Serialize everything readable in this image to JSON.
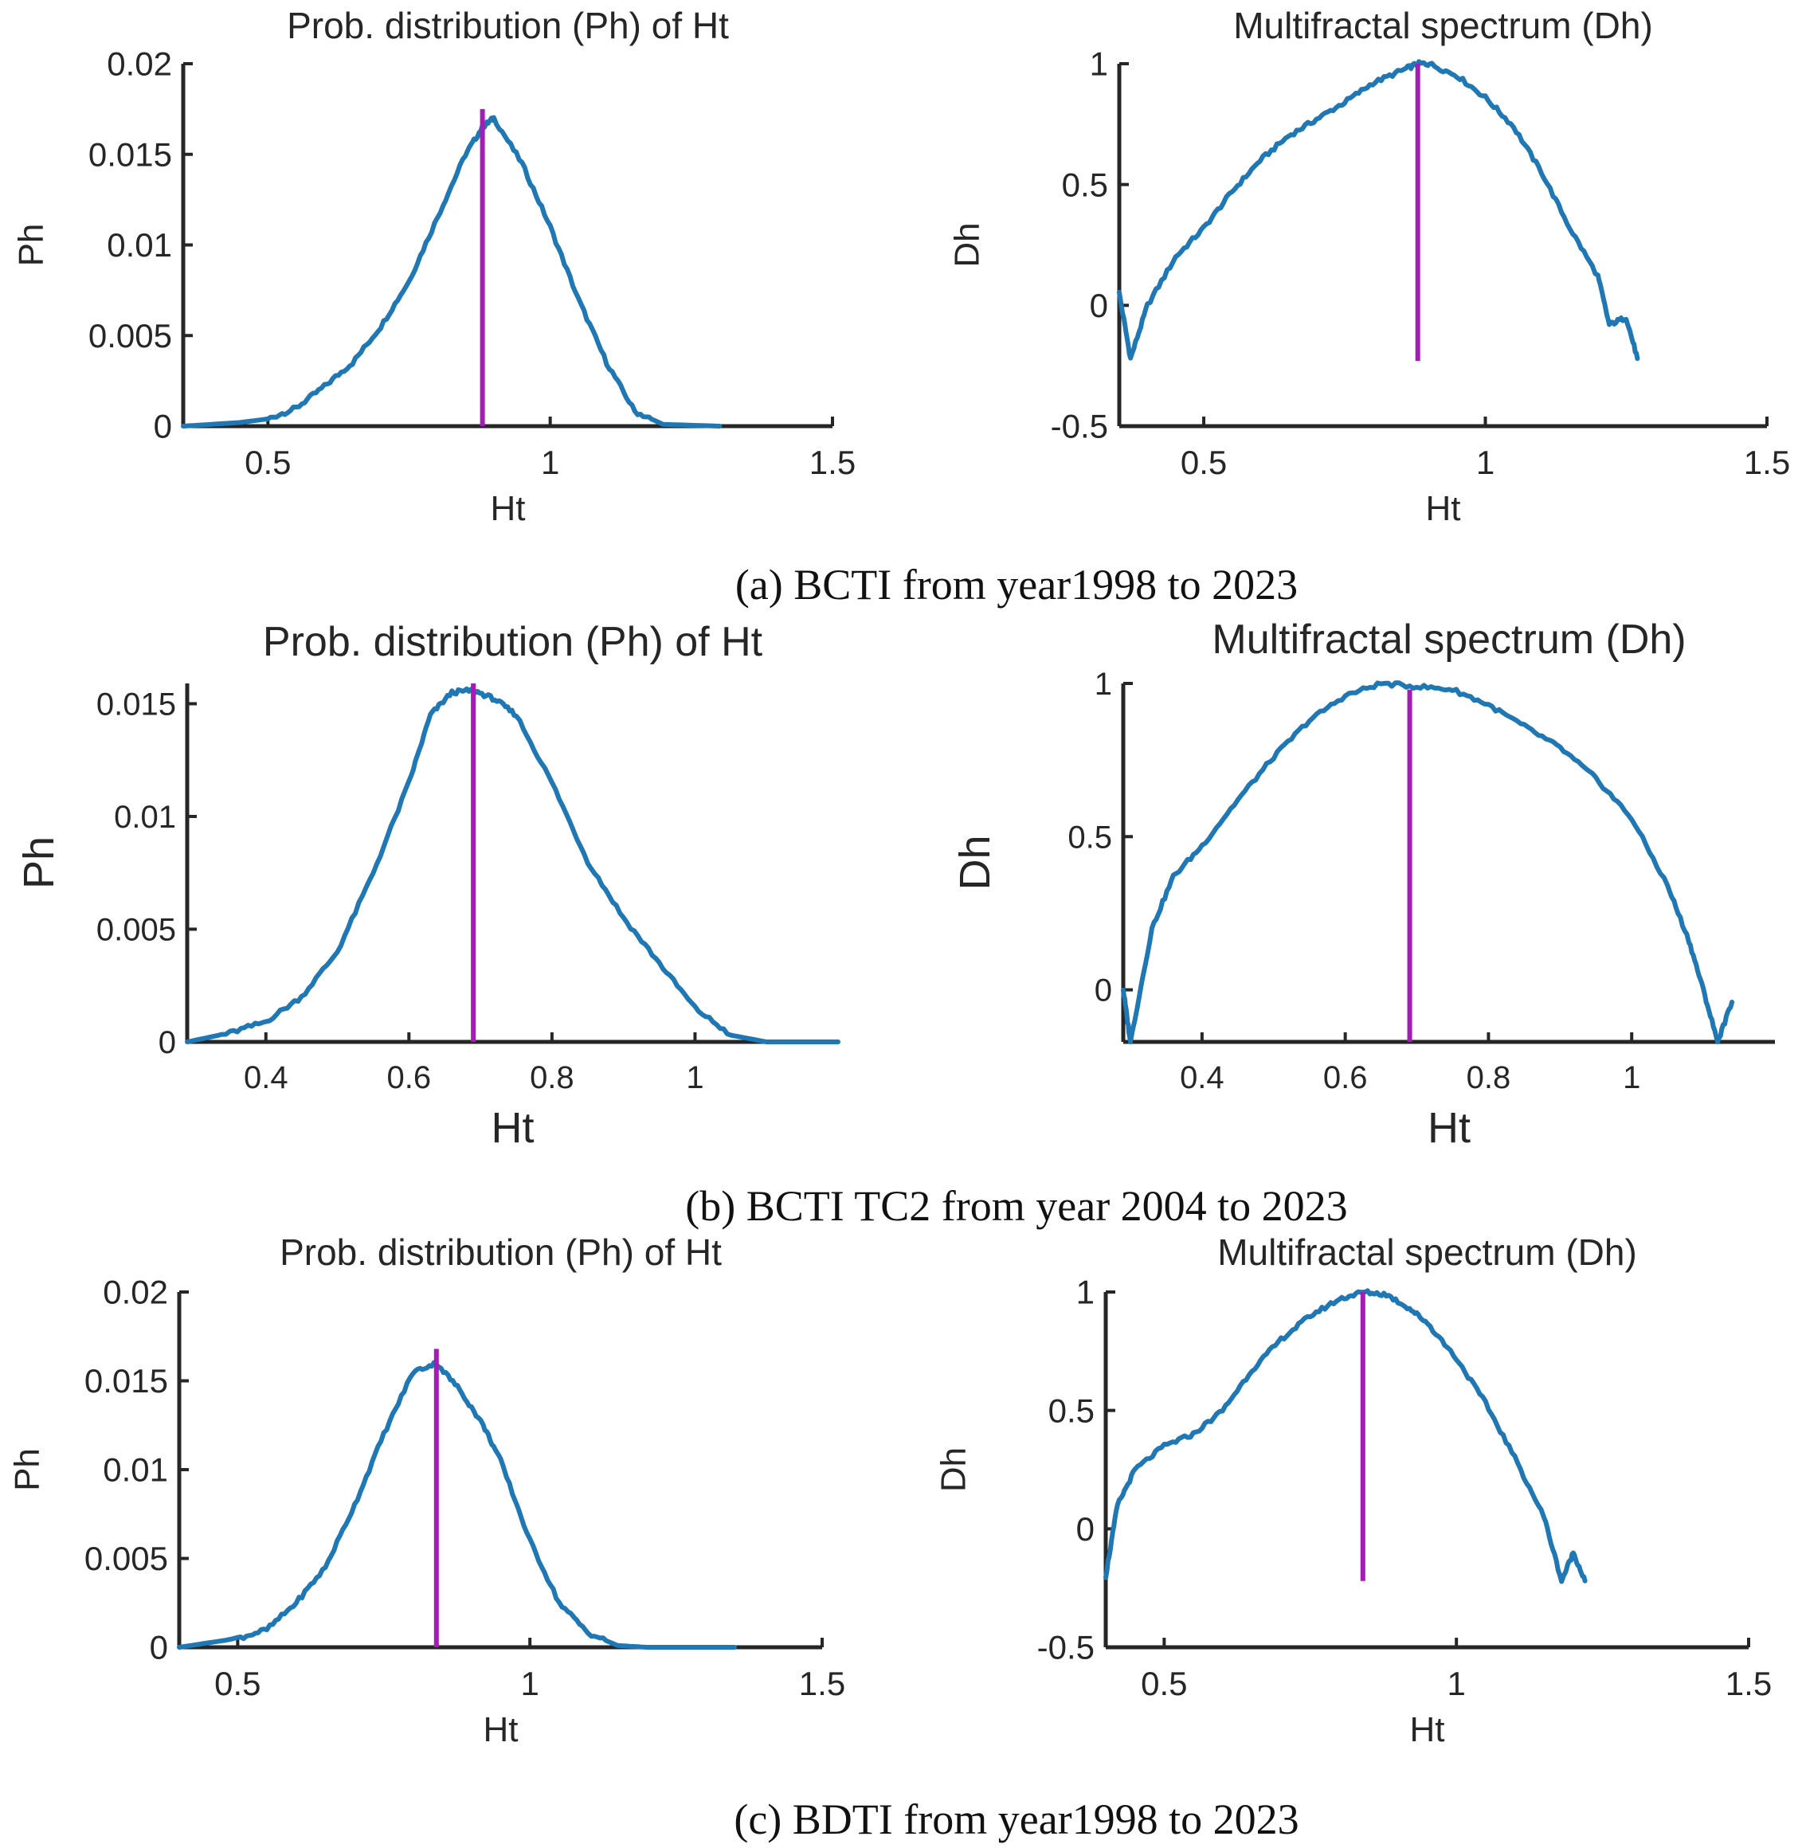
{
  "colors": {
    "series": "#1f77b4",
    "marker": "#a51bb5",
    "axis": "#262626"
  },
  "captions": [
    "(a)  BCTI from year1998 to 2023",
    "(b)  BCTI TC2 from year 2004 to 2023",
    "(c)  BDTI from year1998 to 2023"
  ],
  "chart_data": [
    {
      "id": "a-left",
      "type": "line",
      "title": "Prob. distribution (Ph) of Ht",
      "xlabel": "Ht",
      "ylabel": "Ph",
      "xlim": [
        0.35,
        1.5
      ],
      "ylim": [
        0,
        0.02
      ],
      "xticks": [
        0.5,
        1,
        1.5
      ],
      "xtick_labels": [
        "0.5",
        "1",
        "1.5"
      ],
      "yticks": [
        0,
        0.005,
        0.01,
        0.015,
        0.02
      ],
      "ytick_labels": [
        "0",
        "0.005",
        "0.01",
        "0.015",
        "0.02"
      ],
      "series": [
        {
          "name": "Ph",
          "x": [
            0.35,
            0.45,
            0.5,
            0.55,
            0.6,
            0.65,
            0.7,
            0.75,
            0.8,
            0.85,
            0.88,
            0.9,
            0.95,
            1.0,
            1.05,
            1.1,
            1.15,
            1.2,
            1.3
          ],
          "y": [
            0,
            0.0002,
            0.0004,
            0.001,
            0.0022,
            0.0035,
            0.0055,
            0.008,
            0.0115,
            0.015,
            0.0165,
            0.017,
            0.0145,
            0.011,
            0.007,
            0.0035,
            0.0008,
            0.0001,
            0
          ]
        }
      ],
      "marker": {
        "x": 0.88,
        "y": [
          0,
          0.0175
        ]
      }
    },
    {
      "id": "a-right",
      "type": "line",
      "title": "Multifractal spectrum (Dh)",
      "xlabel": "Ht",
      "ylabel": "Dh",
      "xlim": [
        0.35,
        1.5
      ],
      "ylim": [
        -0.5,
        1
      ],
      "xticks": [
        0.5,
        1,
        1.5
      ],
      "xtick_labels": [
        "0.5",
        "1",
        "1.5"
      ],
      "yticks": [
        -0.5,
        0,
        0.5,
        1
      ],
      "ytick_labels": [
        "-0.5",
        "0",
        "0.5",
        "1"
      ],
      "series": [
        {
          "name": "Dh",
          "x": [
            0.35,
            0.37,
            0.4,
            0.45,
            0.5,
            0.55,
            0.6,
            0.65,
            0.7,
            0.75,
            0.8,
            0.85,
            0.88,
            0.9,
            0.95,
            1.0,
            1.05,
            1.1,
            1.15,
            1.2,
            1.22,
            1.25,
            1.27
          ],
          "y": [
            0.05,
            -0.22,
            0.0,
            0.2,
            0.32,
            0.47,
            0.6,
            0.7,
            0.77,
            0.84,
            0.92,
            0.97,
            1.0,
            1.0,
            0.95,
            0.86,
            0.74,
            0.55,
            0.32,
            0.12,
            -0.08,
            -0.05,
            -0.22
          ]
        }
      ],
      "marker": {
        "x": 0.88,
        "y": [
          -0.23,
          1
        ]
      }
    },
    {
      "id": "b-left",
      "type": "line",
      "title": "Prob. distribution (Ph) of Ht",
      "xlabel": "Ht",
      "ylabel": "Ph",
      "xlim": [
        0.29,
        1.2
      ],
      "ylim": [
        0,
        0.0159
      ],
      "xticks": [
        0.4,
        0.6,
        0.8,
        1
      ],
      "xtick_labels": [
        "0.4",
        "0.6",
        "0.8",
        "1"
      ],
      "yticks": [
        0,
        0.005,
        0.01,
        0.015
      ],
      "ytick_labels": [
        "0",
        "0.005",
        "0.01",
        "0.015"
      ],
      "series": [
        {
          "name": "Ph",
          "x": [
            0.29,
            0.35,
            0.4,
            0.45,
            0.5,
            0.55,
            0.6,
            0.63,
            0.66,
            0.69,
            0.72,
            0.75,
            0.8,
            0.85,
            0.9,
            0.95,
            1.0,
            1.05,
            1.1,
            1.2
          ],
          "y": [
            0,
            0.0004,
            0.0009,
            0.002,
            0.004,
            0.0075,
            0.0115,
            0.0145,
            0.0155,
            0.0156,
            0.0152,
            0.0145,
            0.0115,
            0.008,
            0.0055,
            0.0035,
            0.0015,
            0.0003,
            0,
            0
          ]
        }
      ],
      "marker": {
        "x": 0.69,
        "y": [
          0,
          0.0159
        ]
      }
    },
    {
      "id": "b-right",
      "type": "line",
      "title": "Multifractal spectrum (Dh)",
      "xlabel": "Ht",
      "ylabel": "Dh",
      "xlim": [
        0.29,
        1.2
      ],
      "ylim": [
        -0.17,
        1
      ],
      "xticks": [
        0.4,
        0.6,
        0.8,
        1
      ],
      "xtick_labels": [
        "0.4",
        "0.6",
        "0.8",
        "1"
      ],
      "yticks": [
        0,
        0.5,
        1
      ],
      "ytick_labels": [
        "0",
        "0.5",
        "1"
      ],
      "series": [
        {
          "name": "Dh",
          "x": [
            0.29,
            0.3,
            0.33,
            0.36,
            0.4,
            0.45,
            0.5,
            0.55,
            0.6,
            0.65,
            0.7,
            0.75,
            0.8,
            0.85,
            0.9,
            0.95,
            1.0,
            1.05,
            1.08,
            1.1,
            1.12,
            1.14
          ],
          "y": [
            0.0,
            -0.17,
            0.2,
            0.37,
            0.47,
            0.62,
            0.76,
            0.88,
            0.96,
            1.0,
            0.99,
            0.98,
            0.93,
            0.86,
            0.79,
            0.69,
            0.56,
            0.34,
            0.16,
            0.0,
            -0.17,
            -0.04
          ]
        }
      ],
      "marker": {
        "x": 0.69,
        "y": [
          -0.17,
          0.98
        ]
      }
    },
    {
      "id": "c-left",
      "type": "line",
      "title": "Prob. distribution (Ph) of Ht",
      "xlabel": "Ht",
      "ylabel": "Ph",
      "xlim": [
        0.4,
        1.5
      ],
      "ylim": [
        0,
        0.02
      ],
      "xticks": [
        0.5,
        1,
        1.5
      ],
      "xtick_labels": [
        "0.5",
        "1",
        "1.5"
      ],
      "yticks": [
        0,
        0.005,
        0.01,
        0.015,
        0.02
      ],
      "ytick_labels": [
        "0",
        "0.005",
        "0.01",
        "0.015",
        "0.02"
      ],
      "series": [
        {
          "name": "Ph",
          "x": [
            0.4,
            0.5,
            0.55,
            0.6,
            0.65,
            0.7,
            0.75,
            0.8,
            0.84,
            0.88,
            0.92,
            0.95,
            1.0,
            1.05,
            1.1,
            1.15,
            1.2,
            1.35
          ],
          "y": [
            0,
            0.0005,
            0.001,
            0.0025,
            0.0045,
            0.008,
            0.012,
            0.0155,
            0.016,
            0.0145,
            0.0125,
            0.0105,
            0.006,
            0.0025,
            0.0008,
            0.0001,
            0,
            0
          ]
        }
      ],
      "marker": {
        "x": 0.84,
        "y": [
          0,
          0.0168
        ]
      }
    },
    {
      "id": "c-right",
      "type": "line",
      "title": "Multifractal spectrum (Dh)",
      "xlabel": "Ht",
      "ylabel": "Dh",
      "xlim": [
        0.4,
        1.5
      ],
      "ylim": [
        -0.5,
        1
      ],
      "xticks": [
        0.5,
        1,
        1.5
      ],
      "xtick_labels": [
        "0.5",
        "1",
        "1.5"
      ],
      "yticks": [
        -0.5,
        0,
        0.5,
        1
      ],
      "ytick_labels": [
        "-0.5",
        "0",
        "0.5",
        "1"
      ],
      "series": [
        {
          "name": "Dh",
          "x": [
            0.4,
            0.42,
            0.45,
            0.5,
            0.55,
            0.6,
            0.65,
            0.7,
            0.75,
            0.8,
            0.84,
            0.88,
            0.92,
            0.95,
            1.0,
            1.05,
            1.1,
            1.15,
            1.18,
            1.2,
            1.22
          ],
          "y": [
            -0.2,
            0.1,
            0.25,
            0.35,
            0.4,
            0.5,
            0.67,
            0.8,
            0.9,
            0.97,
            1.0,
            0.99,
            0.93,
            0.87,
            0.72,
            0.53,
            0.3,
            0.05,
            -0.22,
            -0.1,
            -0.22
          ]
        }
      ],
      "marker": {
        "x": 0.84,
        "y": [
          -0.22,
          1
        ]
      }
    }
  ]
}
